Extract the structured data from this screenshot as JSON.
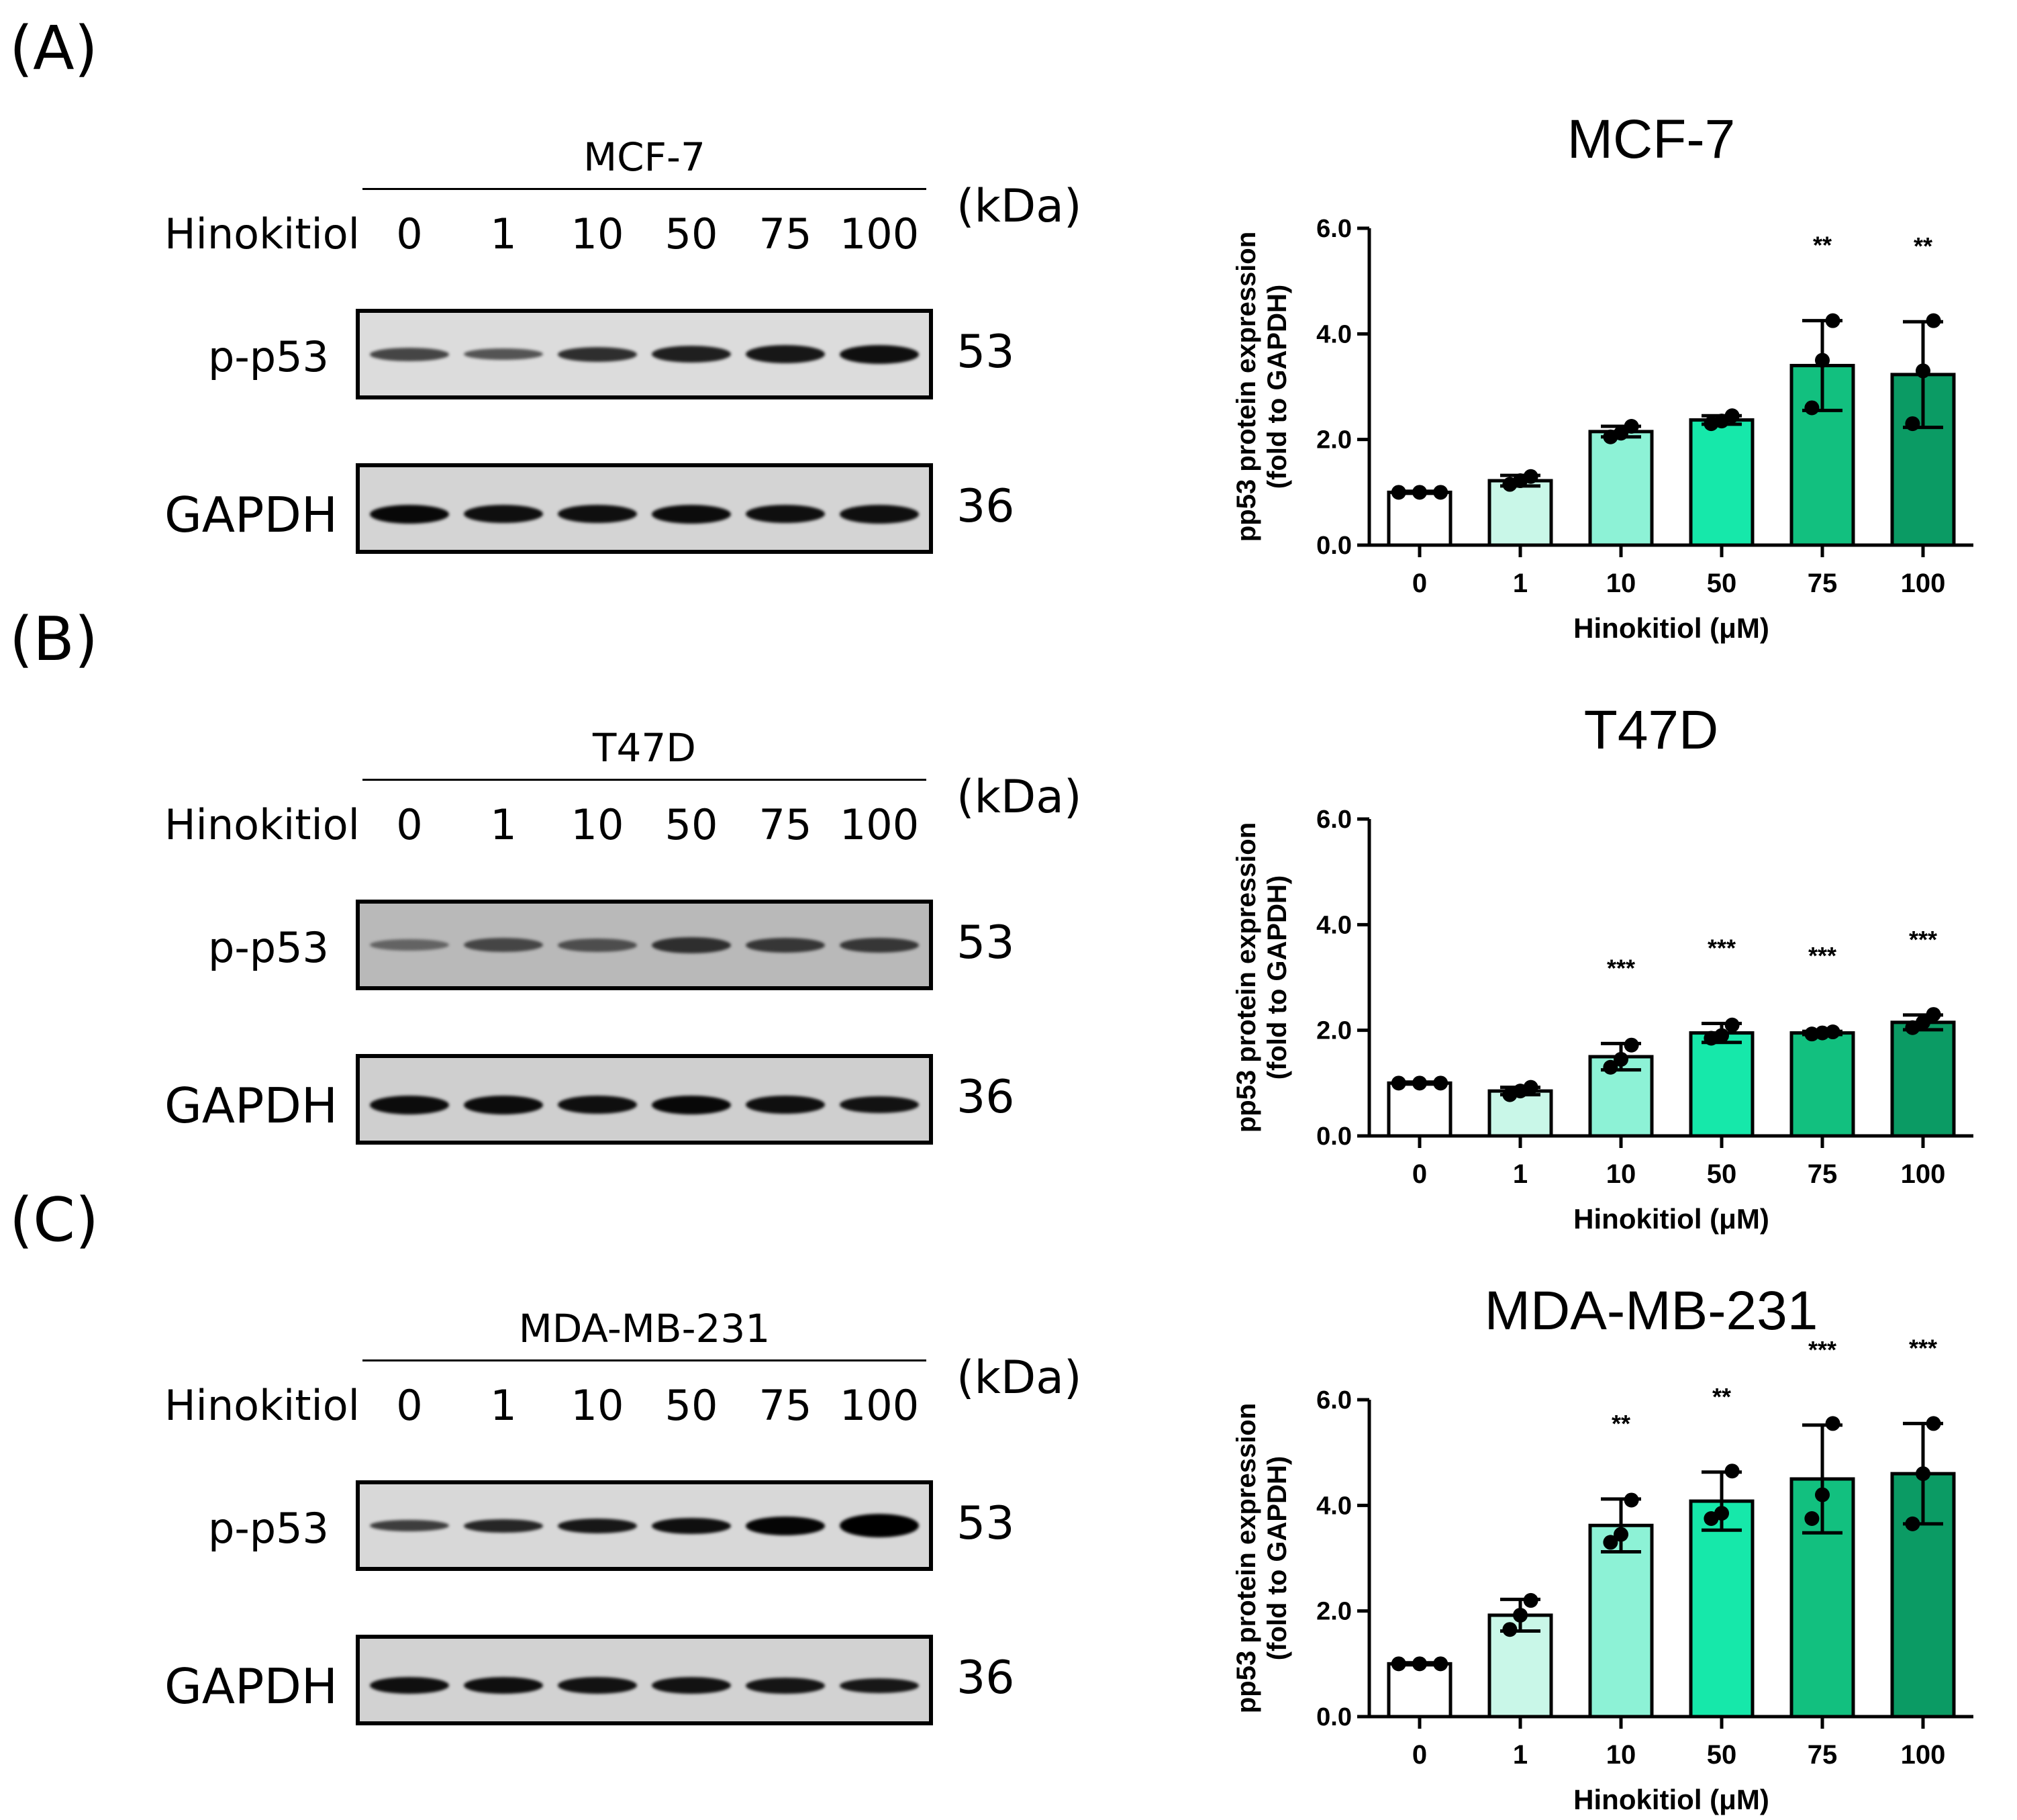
{
  "panels": [
    {
      "label": "(A)",
      "cell_line": "MCF-7",
      "treatment_label": "Hinokitiol",
      "doses": [
        "0",
        "1",
        "10",
        "50",
        "75",
        "100"
      ],
      "unit_label": "(kDa)",
      "blots": [
        {
          "protein": "p-p53",
          "kda": "53",
          "background": "#dcdcdc",
          "intensity": [
            0.55,
            0.45,
            0.7,
            0.8,
            0.85,
            0.9
          ],
          "thickness": [
            0.7,
            0.6,
            0.8,
            0.9,
            0.95,
            1.0
          ]
        },
        {
          "protein": "GAPDH",
          "kda": "36",
          "background": "#d4d4d4",
          "intensity": [
            0.95,
            0.9,
            0.9,
            0.92,
            0.9,
            0.9
          ],
          "thickness": [
            1.0,
            0.95,
            0.95,
            1.0,
            0.95,
            1.0
          ]
        }
      ]
    },
    {
      "label": "(B)",
      "cell_line": "T47D",
      "treatment_label": "Hinokitiol",
      "doses": [
        "0",
        "1",
        "10",
        "50",
        "75",
        "100"
      ],
      "unit_label": "(kDa)",
      "blots": [
        {
          "protein": "p-p53",
          "kda": "53",
          "background": "#b9b9b9",
          "intensity": [
            0.35,
            0.55,
            0.5,
            0.7,
            0.65,
            0.65
          ],
          "thickness": [
            0.6,
            0.75,
            0.7,
            0.85,
            0.8,
            0.8
          ]
        },
        {
          "protein": "GAPDH",
          "kda": "36",
          "background": "#cfcfcf",
          "intensity": [
            0.92,
            0.92,
            0.9,
            0.95,
            0.9,
            0.88
          ],
          "thickness": [
            1.0,
            1.0,
            0.95,
            1.0,
            0.95,
            0.9
          ]
        }
      ]
    },
    {
      "label": "(C)",
      "cell_line": "MDA-MB-231",
      "treatment_label": "Hinokitiol",
      "doses": [
        "0",
        "1",
        "10",
        "50",
        "75",
        "100"
      ],
      "unit_label": "(kDa)",
      "blots": [
        {
          "protein": "p-p53",
          "kda": "53",
          "background": "#d8d8d8",
          "intensity": [
            0.6,
            0.75,
            0.85,
            0.9,
            0.97,
            1.0
          ],
          "thickness": [
            0.6,
            0.7,
            0.8,
            0.85,
            1.0,
            1.25
          ]
        },
        {
          "protein": "GAPDH",
          "kda": "36",
          "background": "#d2d2d2",
          "intensity": [
            0.9,
            0.9,
            0.88,
            0.88,
            0.86,
            0.85
          ],
          "thickness": [
            0.9,
            0.9,
            0.9,
            0.9,
            0.85,
            0.8
          ]
        }
      ]
    }
  ],
  "chart_data": [
    {
      "type": "bar",
      "title": "MCF-7",
      "xlabel": "Hinokitiol (μM)",
      "ylabel": "pp53 protein expression\n(fold to GAPDH)",
      "ylim": [
        0,
        6
      ],
      "yticks": [
        "0.0",
        "2.0",
        "4.0",
        "6.0"
      ],
      "categories": [
        "0",
        "1",
        "10",
        "50",
        "75",
        "100"
      ],
      "values": [
        1.0,
        1.22,
        2.15,
        2.37,
        3.4,
        3.23
      ],
      "error": [
        0.02,
        0.1,
        0.1,
        0.08,
        0.85,
        1.0
      ],
      "points": [
        [
          1.0,
          1.0,
          1.0
        ],
        [
          1.15,
          1.22,
          1.3
        ],
        [
          2.05,
          2.12,
          2.25
        ],
        [
          2.3,
          2.35,
          2.45
        ],
        [
          2.6,
          3.5,
          4.25
        ],
        [
          2.3,
          3.3,
          4.25
        ]
      ],
      "significance": [
        "",
        "",
        "",
        "",
        "**",
        "**"
      ],
      "colors": [
        "#ffffff",
        "#c9f7e8",
        "#8df2d6",
        "#16e8aa",
        "#12c07f",
        "#0b9b64"
      ]
    },
    {
      "type": "bar",
      "title": "T47D",
      "xlabel": "Hinokitiol (μM)",
      "ylabel": "pp53 protein expression\n(fold to GAPDH)",
      "ylim": [
        0,
        6
      ],
      "yticks": [
        "0.0",
        "2.0",
        "4.0",
        "6.0"
      ],
      "categories": [
        "0",
        "1",
        "10",
        "50",
        "75",
        "100"
      ],
      "values": [
        1.0,
        0.85,
        1.5,
        1.95,
        1.95,
        2.15
      ],
      "error": [
        0.02,
        0.07,
        0.25,
        0.18,
        0.03,
        0.14
      ],
      "points": [
        [
          1.0,
          1.0,
          1.0
        ],
        [
          0.78,
          0.85,
          0.92
        ],
        [
          1.3,
          1.45,
          1.72
        ],
        [
          1.85,
          1.9,
          2.1
        ],
        [
          1.93,
          1.95,
          1.97
        ],
        [
          2.05,
          2.15,
          2.3
        ]
      ],
      "significance": [
        "",
        "",
        "***",
        "***",
        "***",
        "***"
      ],
      "colors": [
        "#ffffff",
        "#c9f7e8",
        "#8df2d6",
        "#16e8aa",
        "#12c07f",
        "#0b9b64"
      ]
    },
    {
      "type": "bar",
      "title": "MDA-MB-231",
      "xlabel": "Hinokitiol (μM)",
      "ylabel": "pp53 protein expression\n(fold to GAPDH)",
      "ylim": [
        0,
        6
      ],
      "yticks": [
        "0.0",
        "2.0",
        "4.0",
        "6.0"
      ],
      "categories": [
        "0",
        "1",
        "10",
        "50",
        "75",
        "100"
      ],
      "values": [
        1.0,
        1.92,
        3.62,
        4.08,
        4.5,
        4.6
      ],
      "error": [
        0.02,
        0.3,
        0.5,
        0.55,
        1.02,
        0.95
      ],
      "points": [
        [
          1.0,
          1.0,
          1.0
        ],
        [
          1.65,
          1.92,
          2.2
        ],
        [
          3.3,
          3.45,
          4.1
        ],
        [
          3.75,
          3.85,
          4.65
        ],
        [
          3.75,
          4.2,
          5.55
        ],
        [
          3.65,
          4.6,
          5.55
        ]
      ],
      "significance": [
        "",
        "",
        "**",
        "**",
        "***",
        "***"
      ],
      "colors": [
        "#ffffff",
        "#c9f7e8",
        "#8df2d6",
        "#16e8aa",
        "#12c07f",
        "#0b9b64"
      ]
    }
  ]
}
